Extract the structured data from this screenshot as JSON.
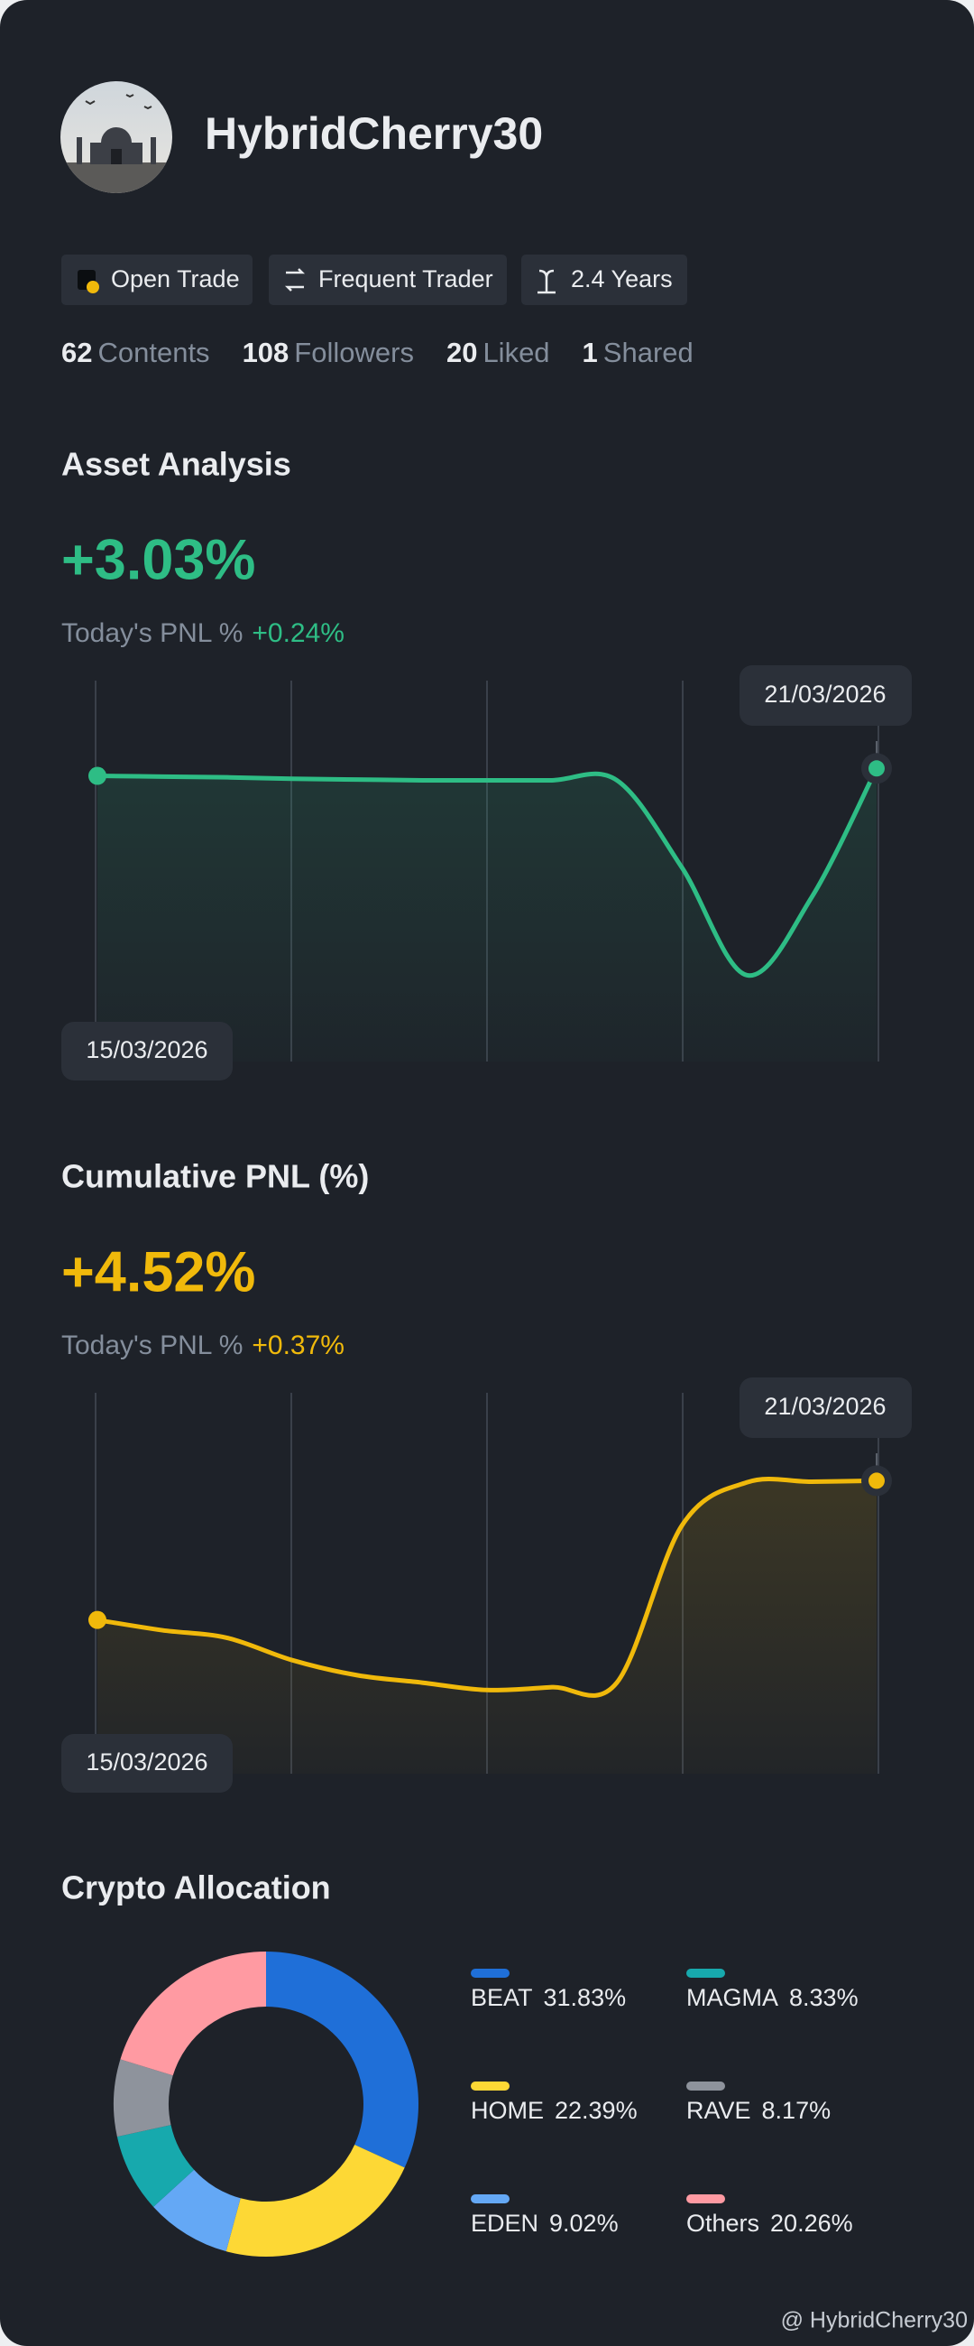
{
  "profile": {
    "username": "HybridCherry30",
    "badges": [
      "Open Trade",
      "Frequent Trader",
      "2.4 Years"
    ],
    "stats": [
      {
        "value": 62,
        "label": "Contents"
      },
      {
        "value": 108,
        "label": "Followers"
      },
      {
        "value": 20,
        "label": "Liked"
      },
      {
        "value": 1,
        "label": "Shared"
      }
    ]
  },
  "chart_data": [
    {
      "type": "line",
      "title": "Asset Analysis",
      "headline": "+3.03%",
      "pnl_label": "Today's PNL %",
      "pnl_value": "+0.24%",
      "start_label": "15/03/2026",
      "end_label": "21/03/2026",
      "color": "#2ebd85",
      "ylim": [
        0,
        100
      ],
      "values": [
        88.5,
        88.2,
        87.9,
        87.3,
        87,
        86.7,
        86.7,
        86.7,
        86.7,
        51.5,
        7.9,
        39.4,
        91.5
      ]
    },
    {
      "type": "line",
      "title": "Cumulative PNL (%)",
      "headline": "+4.52%",
      "pnl_label": "Today's PNL %",
      "pnl_value": "+0.37%",
      "start_label": "15/03/2026",
      "end_label": "21/03/2026",
      "color": "#f0b90b",
      "ylim": [
        0,
        100
      ],
      "values": [
        35.6,
        31.3,
        28.1,
        18.8,
        12.5,
        9.4,
        6.3,
        7.5,
        9.4,
        75,
        93.1,
        93.4,
        93.8
      ]
    },
    {
      "type": "donut",
      "title": "Crypto Allocation",
      "categories": [
        "BEAT",
        "HOME",
        "EDEN",
        "MAGMA",
        "RAVE",
        "Others"
      ],
      "values": [
        31.83,
        22.39,
        9.02,
        8.33,
        8.17,
        20.26
      ],
      "value_labels": [
        "31.83%",
        "22.39%",
        "9.02%",
        "8.33%",
        "8.17%",
        "20.26%"
      ],
      "colors": [
        "#1f6fd8",
        "#fdd835",
        "#64a8f5",
        "#17a9ad",
        "#8e939c",
        "#ff9aa2"
      ]
    }
  ],
  "watermark": "@ HybridCherry30"
}
